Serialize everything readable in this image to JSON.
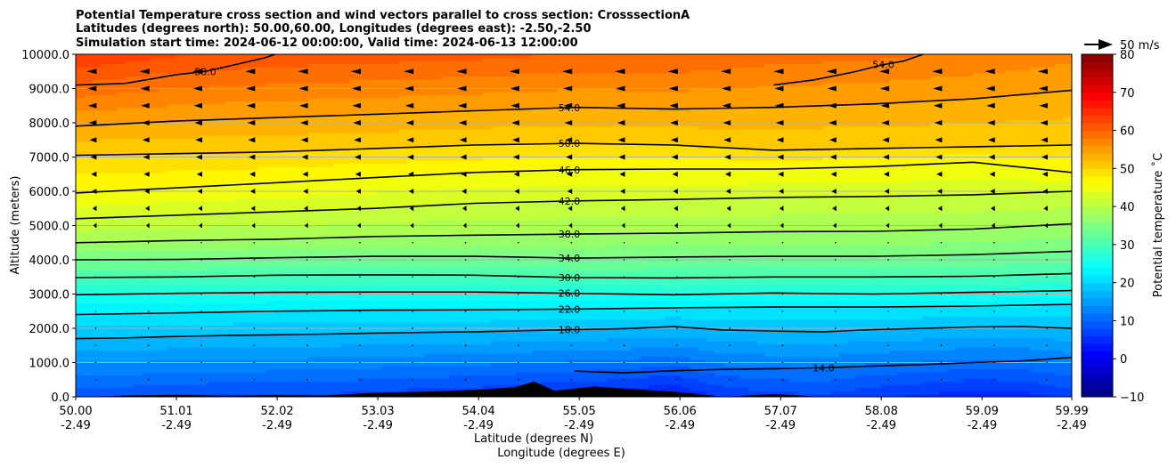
{
  "chart_data": {
    "type": "contour",
    "title": [
      "Potential Temperature cross section and wind vectors parallel to cross section: CrosssectionA",
      "Latitudes (degrees north): 50.00,60.00, Longitudes (degrees east): -2.50,-2.50",
      "Simulation start time: 2024-06-12 00:00:00, Valid time: 2024-06-13 12:00:00"
    ],
    "xlabel": [
      "Latitude (degrees N)",
      "Longitude (degrees E)"
    ],
    "ylabel": "Altitude (meters)",
    "xlim": [
      50.0,
      59.99
    ],
    "ylim": [
      0,
      10000
    ],
    "x_ticks": [
      {
        "lat": "50.00",
        "lon": "-2.49",
        "value": 50.0
      },
      {
        "lat": "51.01",
        "lon": "-2.49",
        "value": 51.01
      },
      {
        "lat": "52.02",
        "lon": "-2.49",
        "value": 52.02
      },
      {
        "lat": "53.03",
        "lon": "-2.49",
        "value": 53.03
      },
      {
        "lat": "54.04",
        "lon": "-2.49",
        "value": 54.04
      },
      {
        "lat": "55.05",
        "lon": "-2.49",
        "value": 55.05
      },
      {
        "lat": "56.06",
        "lon": "-2.49",
        "value": 56.06
      },
      {
        "lat": "57.07",
        "lon": "-2.49",
        "value": 57.07
      },
      {
        "lat": "58.08",
        "lon": "-2.49",
        "value": 58.08
      },
      {
        "lat": "59.09",
        "lon": "-2.49",
        "value": 59.09
      },
      {
        "lat": "59.99",
        "lon": "-2.49",
        "value": 59.99
      }
    ],
    "y_ticks": [
      "0.0",
      "1000.0",
      "2000.0",
      "3000.0",
      "4000.0",
      "5000.0",
      "6000.0",
      "7000.0",
      "8000.0",
      "9000.0",
      "10000.0"
    ],
    "y_tick_values": [
      0,
      1000,
      2000,
      3000,
      4000,
      5000,
      6000,
      7000,
      8000,
      9000,
      10000
    ],
    "grid": "horizontal",
    "colorbar": {
      "label": "Potential temperature $^\\circ$C",
      "label_display": "Potential temperature ˚C",
      "min": -10,
      "max": 80,
      "ticks": [
        "−10",
        "0",
        "10",
        "20",
        "30",
        "40",
        "50",
        "60",
        "70",
        "80"
      ],
      "tick_values": [
        -10,
        0,
        10,
        20,
        30,
        40,
        50,
        60,
        70,
        80
      ],
      "colormap": "jet"
    },
    "quiver_key": {
      "label": "50 m/s"
    },
    "contours": [
      {
        "level": 14.0,
        "label": "14.0",
        "points": [
          [
            55.0,
            750
          ],
          [
            55.5,
            700
          ],
          [
            56.0,
            760
          ],
          [
            56.5,
            800
          ],
          [
            57.0,
            820
          ],
          [
            57.5,
            850
          ],
          [
            58.0,
            900
          ],
          [
            58.5,
            940
          ],
          [
            59.0,
            1000
          ],
          [
            59.5,
            1050
          ],
          [
            59.99,
            1150
          ]
        ]
      },
      {
        "level": 18.0,
        "label": "18.0",
        "points": [
          [
            50.0,
            1700
          ],
          [
            50.5,
            1720
          ],
          [
            51.0,
            1760
          ],
          [
            51.5,
            1790
          ],
          [
            52.0,
            1810
          ],
          [
            52.5,
            1830
          ],
          [
            53.0,
            1860
          ],
          [
            53.5,
            1880
          ],
          [
            54.0,
            1900
          ],
          [
            54.5,
            1930
          ],
          [
            55.0,
            1960
          ],
          [
            55.5,
            1990
          ],
          [
            56.0,
            2050
          ],
          [
            56.5,
            1950
          ],
          [
            57.0,
            1920
          ],
          [
            57.5,
            1900
          ],
          [
            58.0,
            1960
          ],
          [
            58.5,
            2000
          ],
          [
            59.0,
            2040
          ],
          [
            59.5,
            2050
          ],
          [
            59.99,
            2000
          ]
        ]
      },
      {
        "level": 22.0,
        "label": "22.0",
        "points": [
          [
            50.0,
            2400
          ],
          [
            51.0,
            2450
          ],
          [
            52.0,
            2500
          ],
          [
            53.0,
            2530
          ],
          [
            54.0,
            2540
          ],
          [
            55.0,
            2560
          ],
          [
            56.0,
            2600
          ],
          [
            57.0,
            2620
          ],
          [
            58.0,
            2620
          ],
          [
            59.0,
            2650
          ],
          [
            59.99,
            2700
          ]
        ]
      },
      {
        "level": 26.0,
        "label": "26.0",
        "points": [
          [
            50.0,
            2980
          ],
          [
            51.0,
            3020
          ],
          [
            52.0,
            3050
          ],
          [
            53.0,
            3060
          ],
          [
            54.0,
            3060
          ],
          [
            55.0,
            3020
          ],
          [
            56.0,
            2980
          ],
          [
            57.0,
            3030
          ],
          [
            58.0,
            3000
          ],
          [
            59.0,
            3050
          ],
          [
            59.99,
            3100
          ]
        ]
      },
      {
        "level": 30.0,
        "label": "30.0",
        "points": [
          [
            50.0,
            3480
          ],
          [
            51.0,
            3500
          ],
          [
            52.0,
            3550
          ],
          [
            53.0,
            3560
          ],
          [
            54.0,
            3550
          ],
          [
            55.0,
            3480
          ],
          [
            56.0,
            3470
          ],
          [
            57.0,
            3500
          ],
          [
            58.0,
            3500
          ],
          [
            59.0,
            3520
          ],
          [
            59.99,
            3600
          ]
        ]
      },
      {
        "level": 34.0,
        "label": "34.0",
        "points": [
          [
            50.0,
            4000
          ],
          [
            51.0,
            4010
          ],
          [
            52.0,
            4060
          ],
          [
            53.0,
            4100
          ],
          [
            54.0,
            4100
          ],
          [
            55.0,
            4050
          ],
          [
            56.0,
            4080
          ],
          [
            57.0,
            4100
          ],
          [
            58.0,
            4100
          ],
          [
            59.0,
            4150
          ],
          [
            59.99,
            4250
          ]
        ]
      },
      {
        "level": 38.0,
        "label": "38.0",
        "points": [
          [
            50.0,
            4500
          ],
          [
            51.0,
            4560
          ],
          [
            52.0,
            4600
          ],
          [
            53.0,
            4680
          ],
          [
            54.0,
            4720
          ],
          [
            55.0,
            4750
          ],
          [
            56.0,
            4780
          ],
          [
            57.0,
            4820
          ],
          [
            58.0,
            4830
          ],
          [
            59.0,
            4900
          ],
          [
            59.99,
            5050
          ]
        ]
      },
      {
        "level": 42.0,
        "label": "42.0",
        "points": [
          [
            50.0,
            5200
          ],
          [
            51.0,
            5300
          ],
          [
            52.0,
            5400
          ],
          [
            53.0,
            5500
          ],
          [
            54.0,
            5650
          ],
          [
            55.0,
            5720
          ],
          [
            56.0,
            5760
          ],
          [
            57.0,
            5820
          ],
          [
            58.0,
            5850
          ],
          [
            59.0,
            5900
          ],
          [
            59.99,
            6000
          ]
        ]
      },
      {
        "level": 46.0,
        "label": "46.0",
        "points": [
          [
            50.0,
            5950
          ],
          [
            51.0,
            6100
          ],
          [
            52.0,
            6250
          ],
          [
            53.0,
            6400
          ],
          [
            54.0,
            6550
          ],
          [
            55.0,
            6630
          ],
          [
            56.0,
            6650
          ],
          [
            57.0,
            6650
          ],
          [
            58.0,
            6720
          ],
          [
            59.0,
            6850
          ],
          [
            59.99,
            6550
          ]
        ]
      },
      {
        "level": 50.0,
        "label": "50.0",
        "points": [
          [
            50.0,
            7050
          ],
          [
            51.0,
            7100
          ],
          [
            52.0,
            7150
          ],
          [
            53.0,
            7250
          ],
          [
            54.0,
            7350
          ],
          [
            55.0,
            7400
          ],
          [
            56.0,
            7350
          ],
          [
            57.0,
            7200
          ],
          [
            58.0,
            7250
          ],
          [
            59.0,
            7300
          ],
          [
            59.99,
            7350
          ]
        ]
      },
      {
        "level": 54.0,
        "label": "54.0",
        "points": [
          [
            50.0,
            7900
          ],
          [
            51.0,
            8050
          ],
          [
            52.0,
            8150
          ],
          [
            53.0,
            8250
          ],
          [
            54.0,
            8350
          ],
          [
            55.0,
            8450
          ],
          [
            56.0,
            8400
          ],
          [
            57.0,
            8450
          ],
          [
            58.0,
            8550
          ],
          [
            59.0,
            8700
          ],
          [
            59.99,
            8950
          ]
        ]
      },
      {
        "level": 58.0,
        "label": "58.0",
        "points": [
          [
            50.0,
            9100
          ],
          [
            50.5,
            9150
          ],
          [
            51.0,
            9400
          ],
          [
            51.3,
            9500
          ],
          [
            51.6,
            9700
          ],
          [
            51.9,
            9900
          ],
          [
            52.0,
            10000
          ]
        ]
      },
      {
        "level": 54.0,
        "label": "54.0",
        "points": [
          [
            57.0,
            9100
          ],
          [
            57.4,
            9250
          ],
          [
            57.8,
            9480
          ],
          [
            58.1,
            9700
          ],
          [
            58.3,
            9800
          ],
          [
            58.5,
            10000
          ]
        ]
      }
    ],
    "terrain": [
      [
        50.0,
        0
      ],
      [
        50.5,
        40
      ],
      [
        51.0,
        60
      ],
      [
        51.5,
        30
      ],
      [
        52.0,
        50
      ],
      [
        52.5,
        40
      ],
      [
        53.0,
        120
      ],
      [
        53.5,
        150
      ],
      [
        54.0,
        200
      ],
      [
        54.4,
        280
      ],
      [
        54.6,
        450
      ],
      [
        54.8,
        180
      ],
      [
        55.2,
        300
      ],
      [
        55.6,
        220
      ],
      [
        56.0,
        150
      ],
      [
        56.5,
        0
      ],
      [
        57.0,
        80
      ],
      [
        57.5,
        0
      ],
      [
        58.0,
        0
      ],
      [
        59.99,
        0
      ]
    ]
  }
}
